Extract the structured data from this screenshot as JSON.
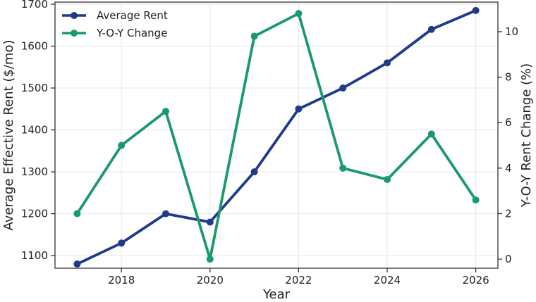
{
  "chart_data": {
    "type": "line",
    "title": "",
    "xlabel": "Year",
    "ylabel_left": "Average Effective Rent ($/mo)",
    "ylabel_right": "Y-O-Y Rent Change (%)",
    "x": [
      2017,
      2018,
      2019,
      2020,
      2021,
      2022,
      2023,
      2024,
      2025,
      2026
    ],
    "xlim": [
      2016.5,
      2026.5
    ],
    "xticks": [
      "2018",
      "2020",
      "2022",
      "2024",
      "2026"
    ],
    "ylim_left": [
      1070,
      1705
    ],
    "yticks_left": [
      "1100",
      "1200",
      "1300",
      "1400",
      "1500",
      "1600",
      "1700"
    ],
    "ylim_right": [
      -0.4,
      11.3
    ],
    "yticks_right": [
      "0",
      "2",
      "4",
      "6",
      "8",
      "10"
    ],
    "grid": true,
    "legend_position": "top-left",
    "series": [
      {
        "name": "Average Rent",
        "axis": "left",
        "color": "#1f3a8a",
        "values": [
          1080,
          1130,
          1200,
          1180,
          1300,
          1450,
          1500,
          1560,
          1640,
          1685
        ]
      },
      {
        "name": "Y-O-Y Change",
        "axis": "right",
        "color": "#1a9a6c",
        "values": [
          2.0,
          5.0,
          6.5,
          0.0,
          9.8,
          10.8,
          4.0,
          3.5,
          5.5,
          2.6
        ]
      }
    ]
  }
}
